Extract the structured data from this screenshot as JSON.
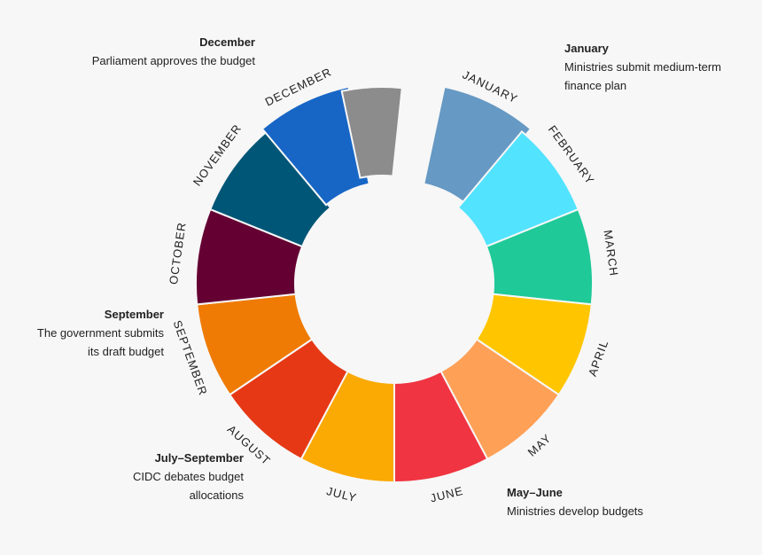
{
  "wheel": {
    "months": [
      {
        "name": "JANUARY",
        "color": "#6699c4"
      },
      {
        "name": "FEBRUARY",
        "color": "#52e3ff"
      },
      {
        "name": "MARCH",
        "color": "#1fc998"
      },
      {
        "name": "APRIL",
        "color": "#ffc600"
      },
      {
        "name": "MAY",
        "color": "#ffa057"
      },
      {
        "name": "JUNE",
        "color": "#f03441"
      },
      {
        "name": "JULY",
        "color": "#fba903"
      },
      {
        "name": "AUGUST",
        "color": "#e63815"
      },
      {
        "name": "SEPTEMBER",
        "color": "#ef7b04"
      },
      {
        "name": "OCTOBER",
        "color": "#650033"
      },
      {
        "name": "NOVEMBER",
        "color": "#005676"
      },
      {
        "name": "DECEMBER",
        "color": "#1766c6"
      }
    ],
    "gap_color": "#8c8c8c"
  },
  "notes": {
    "january": {
      "title": "January",
      "desc": "Ministries submit medium-term\nfinance plan"
    },
    "december": {
      "title": "December",
      "desc": "Parliament approves the budget"
    },
    "september": {
      "title": "September",
      "desc": "The government submits\nits draft budget"
    },
    "july_september": {
      "title": "July–September",
      "desc": "CIDC debates budget\nallocations"
    },
    "may_june": {
      "title": "May–June",
      "desc": "Ministries develop budgets"
    }
  }
}
